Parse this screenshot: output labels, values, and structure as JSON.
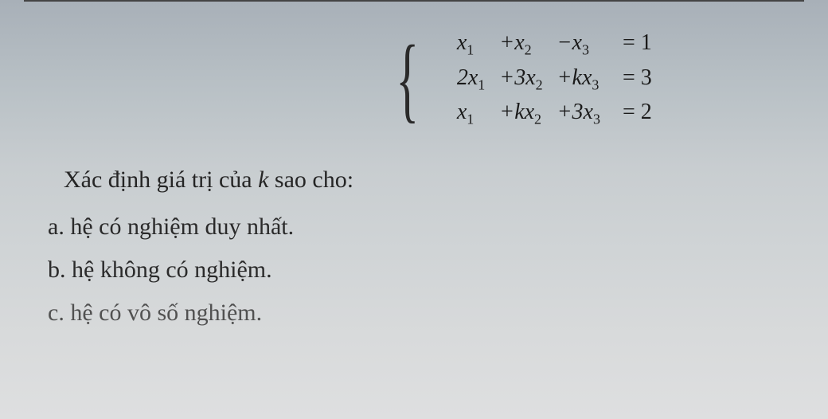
{
  "system": {
    "row1": {
      "c1": "x",
      "s1": "1",
      "c2": "+x",
      "s2": "2",
      "c3": "−x",
      "s3": "3",
      "rhs": "= 1"
    },
    "row2": {
      "c1": "2x",
      "s1": "1",
      "c2": "+3x",
      "s2": "2",
      "c3": "+kx",
      "s3": "3",
      "rhs": "= 3"
    },
    "row3": {
      "c1": "x",
      "s1": "1",
      "c2": "+kx",
      "s2": "2",
      "c3": "+3x",
      "s3": "3",
      "rhs": "= 2"
    }
  },
  "question": {
    "prefix": "Xác định giá trị của ",
    "var": "k",
    "suffix": " sao cho:"
  },
  "options": {
    "a": {
      "label": "a.",
      "text": "hệ có nghiệm duy nhất."
    },
    "b": {
      "label": "b.",
      "text": "hệ không có nghiệm."
    },
    "c": {
      "label": "c.",
      "text": "hệ có vô số nghiệm."
    }
  },
  "style": {
    "text_color": "#1a1a1a",
    "eq_fontsize": 28,
    "body_fontsize": 30
  }
}
